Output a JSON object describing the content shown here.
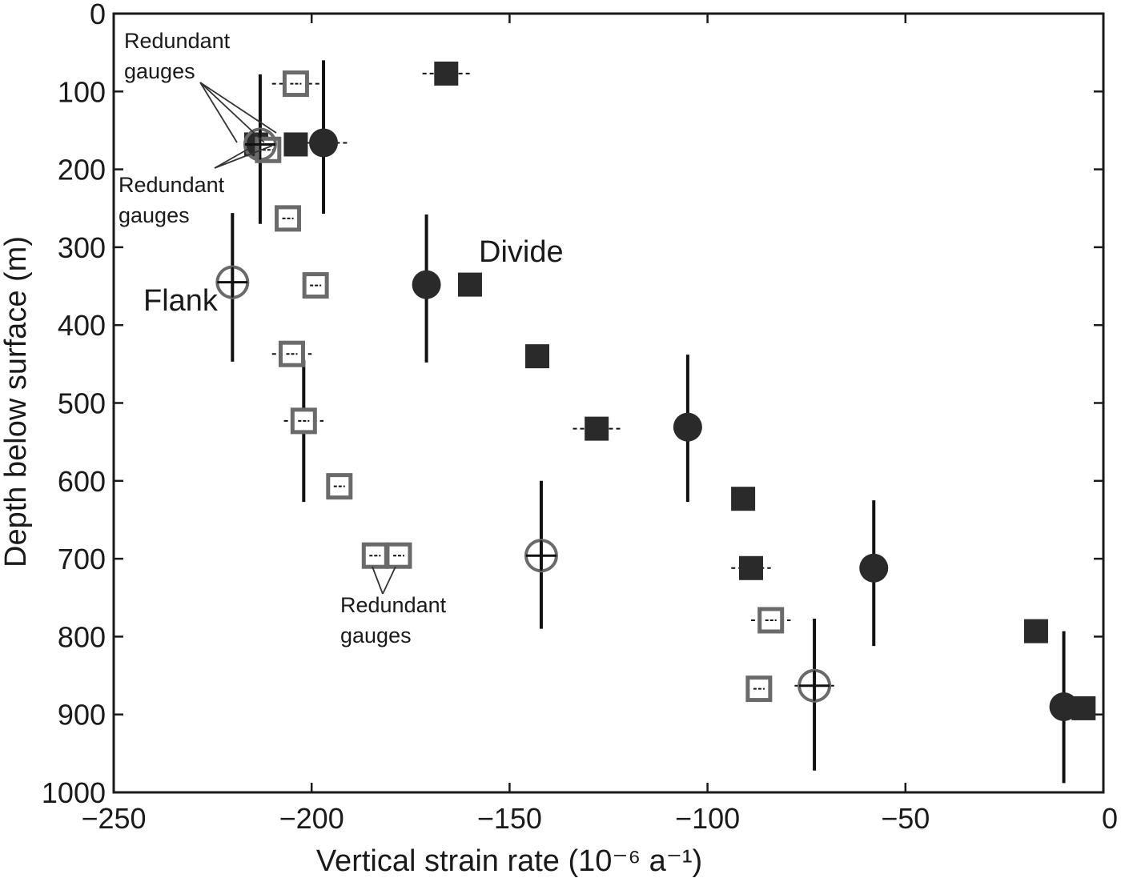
{
  "chart_data": {
    "type": "scatter",
    "xlabel": "Vertical strain rate (10⁻⁶ a⁻¹)",
    "ylabel": "Depth below surface (m)",
    "xlim": [
      -250,
      0
    ],
    "ylim": [
      0,
      1000
    ],
    "y_inverted": true,
    "x_ticks": [
      "−250",
      "−200",
      "−150",
      "−100",
      "−50",
      "0"
    ],
    "y_ticks": [
      "0",
      "100",
      "200",
      "300",
      "400",
      "500",
      "600",
      "700",
      "800",
      "900",
      "1000"
    ],
    "grid": false,
    "colors": {
      "filled": "#2a2a2a",
      "open": "#6a6a6a",
      "axis": "#1a1a1a"
    },
    "series": [
      {
        "marker": "filled-square",
        "points": [
          {
            "x": -166,
            "y": 77,
            "xerr": 6
          },
          {
            "x": -214,
            "y": 168,
            "xerr": 0
          },
          {
            "x": -204,
            "y": 168,
            "xerr": 0
          },
          {
            "x": -160,
            "y": 348,
            "xerr": 0
          },
          {
            "x": -143,
            "y": 440,
            "xerr": 0
          },
          {
            "x": -128,
            "y": 533,
            "xerr": 6
          },
          {
            "x": -91,
            "y": 623,
            "xerr": 0
          },
          {
            "x": -89,
            "y": 712,
            "xerr": 5
          },
          {
            "x": -17,
            "y": 793,
            "xerr": 0
          },
          {
            "x": -5,
            "y": 892,
            "xerr": 0
          }
        ]
      },
      {
        "marker": "filled-circle",
        "points": [
          {
            "x": -197,
            "y": 166,
            "yerr_low": 60,
            "yerr_high": 257,
            "xerr": 6
          },
          {
            "x": -171,
            "y": 348,
            "yerr_low": 258,
            "yerr_high": 448
          },
          {
            "x": -105,
            "y": 531,
            "yerr_low": 438,
            "yerr_high": 627
          },
          {
            "x": -58,
            "y": 712,
            "yerr_low": 625,
            "yerr_high": 812
          },
          {
            "x": -10,
            "y": 890,
            "yerr_low": 793,
            "yerr_high": 988
          }
        ]
      },
      {
        "marker": "open-square",
        "points": [
          {
            "x": -204,
            "y": 90,
            "xerr": 6
          },
          {
            "x": -211,
            "y": 175,
            "xerr": 0
          },
          {
            "x": -206,
            "y": 263,
            "xerr": 0
          },
          {
            "x": -199,
            "y": 349,
            "xerr": 0
          },
          {
            "x": -205,
            "y": 437,
            "xerr": 5
          },
          {
            "x": -202,
            "y": 523,
            "xerr": 5,
            "yerr_low": 445,
            "yerr_high": 627
          },
          {
            "x": -193,
            "y": 607,
            "xerr": 0
          },
          {
            "x": -184,
            "y": 696,
            "xerr": 0
          },
          {
            "x": -178,
            "y": 696,
            "xerr": 0
          },
          {
            "x": -84,
            "y": 779,
            "xerr": 5
          },
          {
            "x": -87,
            "y": 867,
            "xerr": 0
          }
        ]
      },
      {
        "marker": "open-circle-cross",
        "points": [
          {
            "x": -213,
            "y": 168,
            "yerr_low": 78,
            "yerr_high": 270
          },
          {
            "x": -220,
            "y": 345,
            "yerr_low": 256,
            "yerr_high": 447
          },
          {
            "x": -142,
            "y": 696,
            "yerr_low": 600,
            "yerr_high": 790
          },
          {
            "x": -73,
            "y": 863,
            "yerr_low": 777,
            "yerr_high": 972,
            "xerr": 5
          }
        ]
      }
    ],
    "annotations": {
      "redundant_1": [
        "Redundant",
        "gauges"
      ],
      "redundant_2": [
        "Redundant",
        "gauges"
      ],
      "redundant_3": [
        "Redundant",
        "gauges"
      ],
      "divide": "Divide",
      "flank": "Flank"
    }
  }
}
